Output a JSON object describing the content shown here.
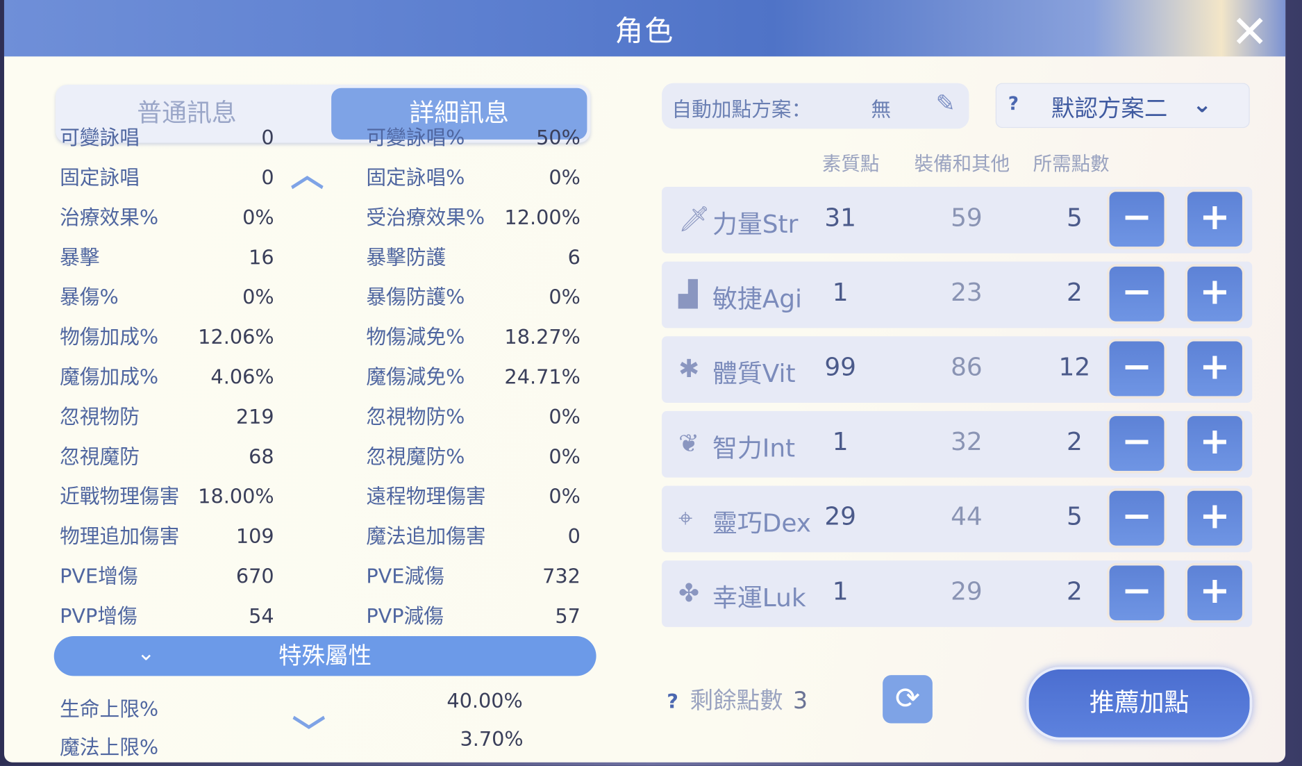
{
  "title": "角色",
  "close_icon": "close-x",
  "tabs": {
    "normal": "普通訊息",
    "detail": "詳細訊息"
  },
  "stats": [
    [
      "可變詠唱",
      "0",
      "可變詠唱%",
      "50%"
    ],
    [
      "固定詠唱",
      "0",
      "固定詠唱%",
      "0%"
    ],
    [
      "治療效果%",
      "0%",
      "受治療效果%",
      "12.00%"
    ],
    [
      "暴擊",
      "16",
      "暴擊防護",
      "6"
    ],
    [
      "暴傷%",
      "0%",
      "暴傷防護%",
      "0%"
    ],
    [
      "物傷加成%",
      "12.06%",
      "物傷減免%",
      "18.27%"
    ],
    [
      "魔傷加成%",
      "4.06%",
      "魔傷減免%",
      "24.71%"
    ],
    [
      "忽視物防",
      "219",
      "忽視物防%",
      "0%"
    ],
    [
      "忽視魔防",
      "68",
      "忽視魔防%",
      "0%"
    ],
    [
      "近戰物理傷害",
      "18.00%",
      "遠程物理傷害",
      "0%"
    ],
    [
      "物理追加傷害",
      "109",
      "魔法追加傷害",
      "0"
    ],
    [
      "PVE增傷",
      "670",
      "PVE減傷",
      "732"
    ],
    [
      "PVP增傷",
      "54",
      "PVP減傷",
      "57"
    ]
  ],
  "special": {
    "title": "特殊屬性",
    "rows": [
      [
        "生命上限%",
        "40.00%"
      ],
      [
        "魔法上限%",
        "3.70%"
      ]
    ]
  },
  "auto": {
    "label": "自動加點方案：",
    "value": "無"
  },
  "scheme": {
    "help": "?",
    "selected": "默認方案二"
  },
  "columns": [
    "素質點",
    "裝備和其他",
    "所需點數"
  ],
  "attributes": [
    {
      "name": "力量Str",
      "icon": "sword",
      "base": "31",
      "equip": "59",
      "need": "5"
    },
    {
      "name": "敏捷Agi",
      "icon": "boot",
      "base": "1",
      "equip": "23",
      "need": "2"
    },
    {
      "name": "體質Vit",
      "icon": "body",
      "base": "99",
      "equip": "86",
      "need": "12"
    },
    {
      "name": "智力Int",
      "icon": "brain",
      "base": "1",
      "equip": "32",
      "need": "2"
    },
    {
      "name": "靈巧Dex",
      "icon": "crosshair",
      "base": "29",
      "equip": "44",
      "need": "5"
    },
    {
      "name": "幸運Luk",
      "icon": "clover",
      "base": "1",
      "equip": "29",
      "need": "2"
    }
  ],
  "buttons": {
    "minus": "−",
    "plus": "+"
  },
  "remaining": {
    "help": "?",
    "label": "剩餘點數",
    "value": "3"
  },
  "recommend": "推薦加點",
  "colors": {
    "accent": "#6c9ae8",
    "button": "#5d82d6",
    "label": "#4f66a0"
  }
}
